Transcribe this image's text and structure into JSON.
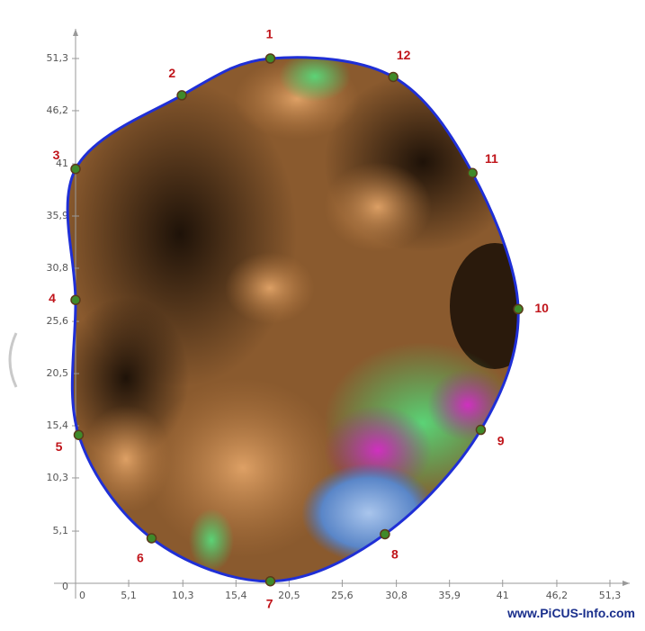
{
  "chart_data": {
    "type": "tomogram",
    "xlim": [
      0,
      51.3
    ],
    "ylim": [
      0,
      51.3
    ],
    "xticks": [
      0,
      {
        "value": 5.1,
        "label": "5,1"
      },
      {
        "value": 10.3,
        "label": "10,3"
      },
      {
        "value": 15.4,
        "label": "15,4"
      },
      {
        "value": 20.5,
        "label": "20,5"
      },
      {
        "value": 25.6,
        "label": "25,6"
      },
      {
        "value": 30.8,
        "label": "30,8"
      },
      {
        "value": 35.9,
        "label": "35,9"
      },
      41,
      {
        "value": 46.2,
        "label": "46,2"
      },
      {
        "value": 51.3,
        "label": "51,3"
      }
    ],
    "yticks": [
      0,
      {
        "value": 5.1,
        "label": "5,1"
      },
      {
        "value": 10.3,
        "label": "10,3"
      },
      {
        "value": 15.4,
        "label": "15,4"
      },
      {
        "value": 20.5,
        "label": "20,5"
      },
      {
        "value": 25.6,
        "label": "25,6"
      },
      {
        "value": 30.8,
        "label": "30,8"
      },
      {
        "value": 35.9,
        "label": "35,9"
      },
      41,
      {
        "value": 46.2,
        "label": "46,2"
      },
      {
        "value": 51.3,
        "label": "51,3"
      }
    ],
    "sensors": [
      {
        "label": "1",
        "x": 18.7,
        "y": 51.3
      },
      {
        "label": "2",
        "x": 10.2,
        "y": 47.7
      },
      {
        "label": "3",
        "x": 0,
        "y": 40.5
      },
      {
        "label": "4",
        "x": 0,
        "y": 27.7
      },
      {
        "label": "5",
        "x": 0.3,
        "y": 14.5
      },
      {
        "label": "6",
        "x": 7.3,
        "y": 4.4
      },
      {
        "label": "7",
        "x": 18.7,
        "y": 0.2
      },
      {
        "label": "8",
        "x": 29.7,
        "y": 4.8
      },
      {
        "label": "9",
        "x": 38.9,
        "y": 15
      },
      {
        "label": "10",
        "x": 42.5,
        "y": 26.8
      },
      {
        "label": "11",
        "x": 38.1,
        "y": 40.1
      },
      {
        "label": "12",
        "x": 30.5,
        "y": 49.5
      }
    ],
    "sensor_color": "#3f8a2a",
    "outline_color": "#1f2fd6",
    "watermark": "www.PiCUS-Info.com"
  }
}
